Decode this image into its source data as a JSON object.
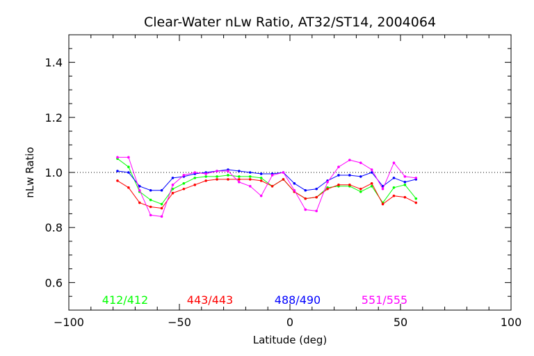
{
  "chart_data": {
    "type": "line",
    "title": "Clear-Water nLw Ratio, AT32/ST14, 2004064",
    "xlabel": "Latitude (deg)",
    "ylabel": "nLw Ratio",
    "xlim": [
      -100,
      100
    ],
    "ylim": [
      0.5,
      1.5
    ],
    "xticks": [
      -100,
      -50,
      0,
      50,
      100
    ],
    "xtick_labels": [
      "−100",
      "−50",
      "0",
      "50",
      "100"
    ],
    "yticks": [
      0.6,
      0.8,
      1.0,
      1.2,
      1.4
    ],
    "ytick_labels": [
      "0.6",
      "0.8",
      "1.0",
      "1.2",
      "1.4"
    ],
    "reference_line": 1.0,
    "grid": false,
    "legend_position": "bottom inside plot",
    "x": [
      -78,
      -73,
      -68,
      -63,
      -58,
      -53,
      -48,
      -43,
      -38,
      -33,
      -28,
      -23,
      -18,
      -13,
      -8,
      -3,
      2,
      7,
      12,
      17,
      22,
      27,
      32,
      37,
      42,
      47,
      52,
      57
    ],
    "series": [
      {
        "name": "412/412",
        "color": "#00ff00",
        "values": [
          1.05,
          1.02,
          0.93,
          0.9,
          0.885,
          0.94,
          0.96,
          0.98,
          0.985,
          0.985,
          0.99,
          0.985,
          0.985,
          0.98,
          0.95,
          0.975,
          0.93,
          0.905,
          0.91,
          0.945,
          0.95,
          0.95,
          0.93,
          0.95,
          0.89,
          0.945,
          0.955,
          0.905
        ]
      },
      {
        "name": "443/443",
        "color": "#ff0000",
        "values": [
          0.97,
          0.945,
          0.89,
          0.875,
          0.87,
          0.925,
          0.94,
          0.955,
          0.97,
          0.975,
          0.975,
          0.975,
          0.975,
          0.97,
          0.95,
          0.975,
          0.93,
          0.905,
          0.91,
          0.94,
          0.955,
          0.955,
          0.94,
          0.96,
          0.885,
          0.915,
          0.91,
          0.89
        ]
      },
      {
        "name": "488/490",
        "color": "#0000ff",
        "values": [
          1.005,
          1.0,
          0.95,
          0.935,
          0.935,
          0.98,
          0.985,
          0.995,
          1.0,
          1.005,
          1.01,
          1.005,
          1.0,
          0.995,
          0.995,
          1.0,
          0.96,
          0.935,
          0.94,
          0.97,
          0.99,
          0.99,
          0.985,
          1.0,
          0.95,
          0.98,
          0.965,
          0.975
        ]
      },
      {
        "name": "551/555",
        "color": "#ff00ff",
        "values": [
          1.055,
          1.055,
          0.935,
          0.845,
          0.84,
          0.955,
          0.99,
          1.0,
          0.995,
          1.005,
          1.005,
          0.965,
          0.95,
          0.915,
          0.99,
          1.0,
          0.935,
          0.865,
          0.86,
          0.965,
          1.02,
          1.045,
          1.035,
          1.01,
          0.94,
          1.035,
          0.985,
          0.98
        ]
      }
    ]
  }
}
